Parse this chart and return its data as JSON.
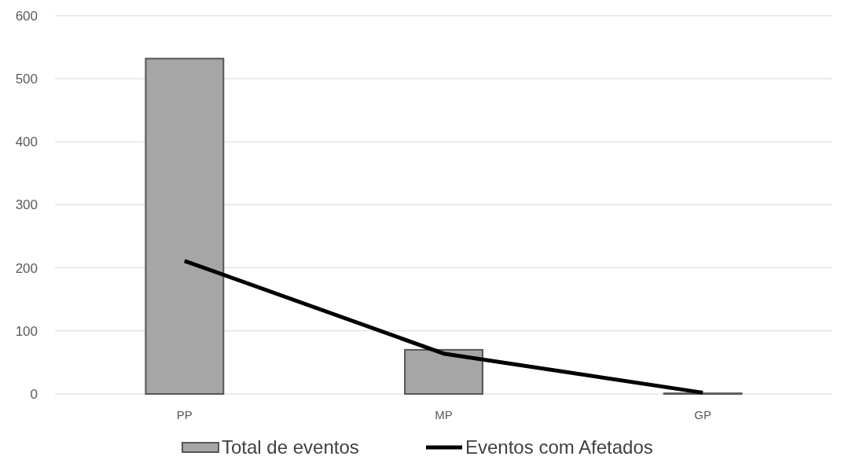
{
  "chart_data": {
    "type": "bar",
    "categories": [
      "PP",
      "MP",
      "GP"
    ],
    "series": [
      {
        "name": "Total de eventos",
        "color": "#a6a6a6",
        "values": [
          532,
          70,
          1
        ]
      },
      {
        "name": "Eventos com Afetados",
        "type": "line",
        "color": "#000000",
        "values": [
          211,
          64,
          2
        ]
      }
    ],
    "ylim": [
      0,
      600
    ],
    "yticks": [
      0,
      100,
      200,
      300,
      400,
      500,
      600
    ],
    "grid": "y",
    "legend": "bottom",
    "marker": "none"
  }
}
